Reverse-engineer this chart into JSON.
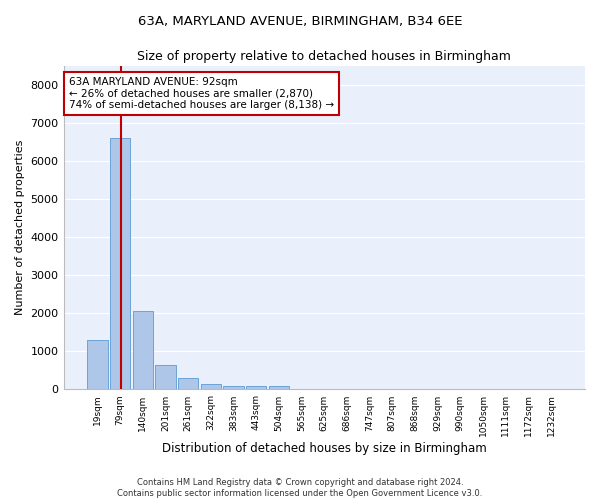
{
  "title": "63A, MARYLAND AVENUE, BIRMINGHAM, B34 6EE",
  "subtitle": "Size of property relative to detached houses in Birmingham",
  "xlabel": "Distribution of detached houses by size in Birmingham",
  "ylabel": "Number of detached properties",
  "footer_line1": "Contains HM Land Registry data © Crown copyright and database right 2024.",
  "footer_line2": "Contains public sector information licensed under the Open Government Licence v3.0.",
  "bin_labels": [
    "19sqm",
    "79sqm",
    "140sqm",
    "201sqm",
    "261sqm",
    "322sqm",
    "383sqm",
    "443sqm",
    "504sqm",
    "565sqm",
    "625sqm",
    "686sqm",
    "747sqm",
    "807sqm",
    "868sqm",
    "929sqm",
    "990sqm",
    "1050sqm",
    "1111sqm",
    "1172sqm",
    "1232sqm"
  ],
  "bar_values": [
    1300,
    6600,
    2050,
    650,
    290,
    140,
    90,
    100,
    100,
    0,
    0,
    0,
    0,
    0,
    0,
    0,
    0,
    0,
    0,
    0,
    0
  ],
  "bar_color": "#aec6e8",
  "bar_edge_color": "#5b9bd5",
  "highlight_color": "#c00000",
  "annotation_text_line1": "63A MARYLAND AVENUE: 92sqm",
  "annotation_text_line2": "← 26% of detached houses are smaller (2,870)",
  "annotation_text_line3": "74% of semi-detached houses are larger (8,138) →",
  "vline_x": 1.05,
  "ylim": [
    0,
    8500
  ],
  "yticks": [
    0,
    1000,
    2000,
    3000,
    4000,
    5000,
    6000,
    7000,
    8000
  ],
  "bg_color": "#eaf0fb",
  "grid_color": "#ffffff",
  "box_color": "#c00000",
  "fig_bg": "#ffffff"
}
